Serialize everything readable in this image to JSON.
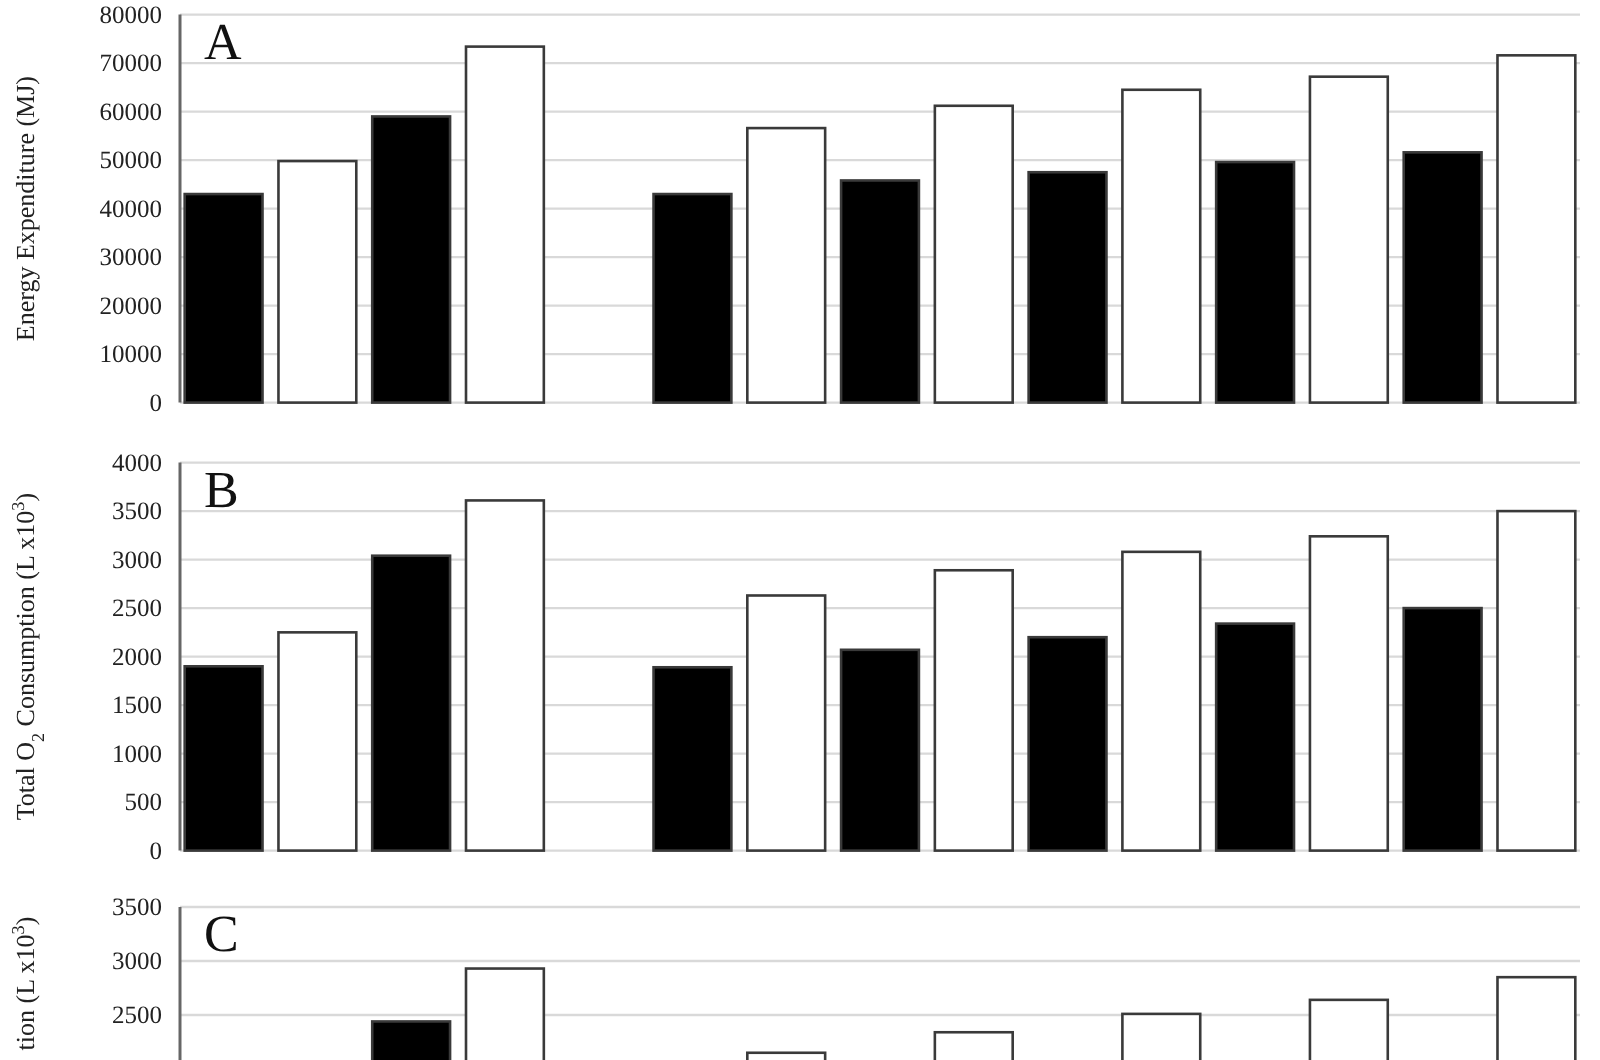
{
  "chart_data": [
    {
      "type": "bar",
      "title": "A",
      "ylabel": "Energy Expenditure (MJ)",
      "categories": [
        null,
        null,
        null,
        null,
        null,
        null,
        null,
        null,
        null,
        null,
        null,
        null,
        null,
        null,
        null
      ],
      "values": [
        43000,
        49800,
        59000,
        73400,
        null,
        43000,
        56600,
        45800,
        61200,
        47500,
        64500,
        49600,
        67200,
        51600,
        71600
      ],
      "colors": [
        "#000000",
        "#ffffff",
        "#000000",
        "#ffffff",
        null,
        "#000000",
        "#ffffff",
        "#000000",
        "#ffffff",
        "#000000",
        "#ffffff",
        "#000000",
        "#ffffff",
        "#000000",
        "#ffffff"
      ],
      "ylim": [
        0,
        80000
      ],
      "yticks": [
        0,
        10000,
        20000,
        30000,
        40000,
        50000,
        60000,
        70000,
        80000
      ],
      "grid": "y",
      "tick_labels": "y"
    },
    {
      "type": "bar",
      "title": "B",
      "ylabel": "Total O$_{2}$ Consumption (L x10$^{3}$)",
      "categories": [
        null,
        null,
        null,
        null,
        null,
        null,
        null,
        null,
        null,
        null,
        null,
        null,
        null,
        null,
        null
      ],
      "values": [
        1900,
        2250,
        3040,
        3610,
        null,
        1890,
        2630,
        2070,
        2890,
        2200,
        3080,
        2340,
        3240,
        2500,
        3500
      ],
      "colors": [
        "#000000",
        "#ffffff",
        "#000000",
        "#ffffff",
        null,
        "#000000",
        "#ffffff",
        "#000000",
        "#ffffff",
        "#000000",
        "#ffffff",
        "#000000",
        "#ffffff",
        "#000000",
        "#ffffff"
      ],
      "ylim": [
        0,
        4000
      ],
      "yticks": [
        0,
        500,
        1000,
        1500,
        2000,
        2500,
        3000,
        3500,
        4000
      ],
      "grid": "y",
      "tick_labels": "y"
    },
    {
      "type": "bar",
      "title": "C",
      "ylabel": "tion (L x10$^{3}$)",
      "categories": [
        null,
        null,
        null,
        null,
        null,
        null,
        null,
        null,
        null,
        null,
        null,
        null,
        null,
        null,
        null
      ],
      "values": [
        null,
        null,
        2440,
        2930,
        null,
        null,
        2150,
        null,
        2340,
        null,
        2510,
        null,
        2640,
        null,
        2850
      ],
      "colors": [
        null,
        null,
        "#000000",
        "#ffffff",
        null,
        null,
        "#ffffff",
        null,
        "#ffffff",
        null,
        "#ffffff",
        null,
        "#ffffff",
        null,
        "#ffffff"
      ],
      "ylim": [
        2083,
        3500
      ],
      "yticks": [
        2500,
        3000,
        3500
      ],
      "grid": "y",
      "tick_labels": "y"
    }
  ]
}
